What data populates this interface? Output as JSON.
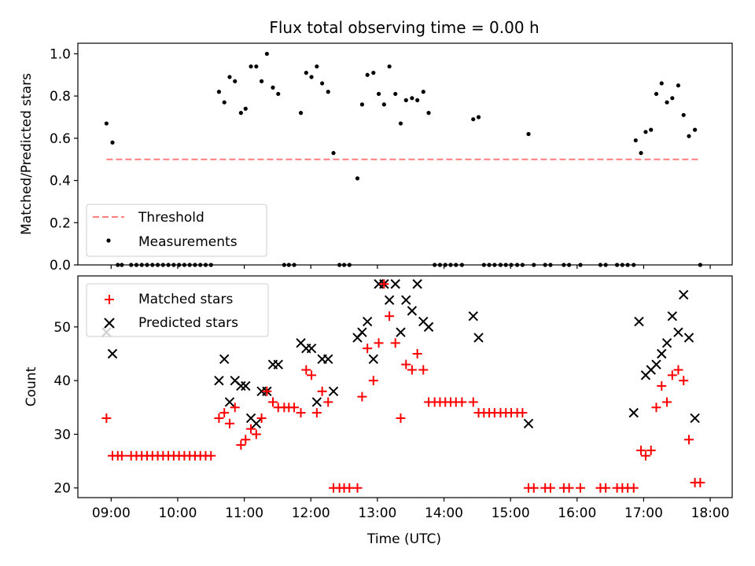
{
  "colors": {
    "threshold": "#ff7f7f",
    "measurements": "#000000",
    "matched": "#ff0000",
    "predicted": "#000000"
  },
  "chart_data": [
    {
      "type": "scatter",
      "title": "Flux total observing time = 0.00 h",
      "xlabel": "",
      "ylabel": "Matched/Predicted stars",
      "ylim": [
        0,
        1.05
      ],
      "yticks": [
        "0.0",
        "0.2",
        "0.4",
        "0.6",
        "0.8",
        "1.0"
      ],
      "xticks": [
        9,
        10,
        11,
        12,
        13,
        14,
        15,
        16,
        17,
        18
      ],
      "xlim": [
        8.5,
        18.33
      ],
      "legend": {
        "placement": "lower-left"
      },
      "threshold": {
        "name": "Threshold",
        "y": 0.5,
        "x_start": 8.93,
        "x_end": 17.83
      },
      "series": [
        {
          "name": "Measurements",
          "points": [
            [
              8.93,
              0.67
            ],
            [
              9.02,
              0.58
            ],
            [
              9.1,
              0
            ],
            [
              9.16,
              0
            ],
            [
              9.3,
              0
            ],
            [
              9.38,
              0
            ],
            [
              9.46,
              0
            ],
            [
              9.54,
              0
            ],
            [
              9.62,
              0
            ],
            [
              9.7,
              0
            ],
            [
              9.78,
              0
            ],
            [
              9.86,
              0
            ],
            [
              9.94,
              0
            ],
            [
              10.02,
              0
            ],
            [
              10.1,
              0
            ],
            [
              10.18,
              0
            ],
            [
              10.26,
              0
            ],
            [
              10.34,
              0
            ],
            [
              10.42,
              0
            ],
            [
              10.5,
              0
            ],
            [
              10.62,
              0.82
            ],
            [
              10.7,
              0.77
            ],
            [
              10.78,
              0.89
            ],
            [
              10.86,
              0.87
            ],
            [
              10.95,
              0.72
            ],
            [
              11.02,
              0.74
            ],
            [
              11.1,
              0.94
            ],
            [
              11.18,
              0.94
            ],
            [
              11.26,
              0.87
            ],
            [
              11.34,
              1.0
            ],
            [
              11.43,
              0.84
            ],
            [
              11.51,
              0.81
            ],
            [
              11.6,
              0
            ],
            [
              11.67,
              0
            ],
            [
              11.75,
              0
            ],
            [
              11.85,
              0.72
            ],
            [
              11.93,
              0.91
            ],
            [
              12.01,
              0.89
            ],
            [
              12.09,
              0.94
            ],
            [
              12.17,
              0.86
            ],
            [
              12.26,
              0.82
            ],
            [
              12.34,
              0.53
            ],
            [
              12.43,
              0
            ],
            [
              12.5,
              0
            ],
            [
              12.58,
              0
            ],
            [
              12.7,
              0.41
            ],
            [
              12.77,
              0.76
            ],
            [
              12.85,
              0.9
            ],
            [
              12.94,
              0.91
            ],
            [
              13.02,
              0.81
            ],
            [
              13.1,
              0.76
            ],
            [
              13.18,
              0.94
            ],
            [
              13.27,
              0.81
            ],
            [
              13.35,
              0.67
            ],
            [
              13.43,
              0.78
            ],
            [
              13.52,
              0.79
            ],
            [
              13.6,
              0.78
            ],
            [
              13.69,
              0.82
            ],
            [
              13.77,
              0.72
            ],
            [
              13.86,
              0
            ],
            [
              13.94,
              0
            ],
            [
              14.02,
              0
            ],
            [
              14.1,
              0
            ],
            [
              14.18,
              0
            ],
            [
              14.27,
              0
            ],
            [
              14.44,
              0.69
            ],
            [
              14.52,
              0.7
            ],
            [
              14.6,
              0
            ],
            [
              14.68,
              0
            ],
            [
              14.76,
              0
            ],
            [
              14.85,
              0
            ],
            [
              14.93,
              0
            ],
            [
              15.01,
              0
            ],
            [
              15.1,
              0
            ],
            [
              15.18,
              0
            ],
            [
              15.27,
              0.62
            ],
            [
              15.35,
              0
            ],
            [
              15.52,
              0
            ],
            [
              15.6,
              0
            ],
            [
              15.8,
              0
            ],
            [
              15.88,
              0
            ],
            [
              16.05,
              0
            ],
            [
              16.35,
              0
            ],
            [
              16.43,
              0
            ],
            [
              16.6,
              0
            ],
            [
              16.68,
              0
            ],
            [
              16.76,
              0
            ],
            [
              16.85,
              0
            ],
            [
              16.88,
              0.59
            ],
            [
              16.96,
              0.53
            ],
            [
              17.03,
              0.63
            ],
            [
              17.11,
              0.64
            ],
            [
              17.19,
              0.81
            ],
            [
              17.27,
              0.86
            ],
            [
              17.35,
              0.77
            ],
            [
              17.43,
              0.79
            ],
            [
              17.52,
              0.85
            ],
            [
              17.6,
              0.71
            ],
            [
              17.68,
              0.61
            ],
            [
              17.77,
              0.64
            ],
            [
              17.85,
              0
            ]
          ]
        }
      ]
    },
    {
      "type": "scatter",
      "title": "",
      "xlabel": "Time (UTC)",
      "ylabel": "Count",
      "ylim": [
        18.2,
        59.5
      ],
      "yticks": [
        20,
        30,
        40,
        50
      ],
      "xticks": [
        9,
        10,
        11,
        12,
        13,
        14,
        15,
        16,
        17,
        18
      ],
      "xtick_labels": [
        "09:00",
        "10:00",
        "11:00",
        "12:00",
        "13:00",
        "14:00",
        "15:00",
        "16:00",
        "17:00",
        "18:00"
      ],
      "xlim": [
        8.5,
        18.33
      ],
      "legend": {
        "placement": "top-left"
      },
      "series": [
        {
          "name": "Matched stars",
          "marker": "plus",
          "points": [
            [
              8.93,
              33
            ],
            [
              9.02,
              26
            ],
            [
              9.1,
              26
            ],
            [
              9.16,
              26
            ],
            [
              9.3,
              26
            ],
            [
              9.38,
              26
            ],
            [
              9.46,
              26
            ],
            [
              9.54,
              26
            ],
            [
              9.62,
              26
            ],
            [
              9.7,
              26
            ],
            [
              9.78,
              26
            ],
            [
              9.86,
              26
            ],
            [
              9.94,
              26
            ],
            [
              10.02,
              26
            ],
            [
              10.1,
              26
            ],
            [
              10.18,
              26
            ],
            [
              10.26,
              26
            ],
            [
              10.34,
              26
            ],
            [
              10.42,
              26
            ],
            [
              10.5,
              26
            ],
            [
              10.62,
              33
            ],
            [
              10.7,
              34
            ],
            [
              10.78,
              32
            ],
            [
              10.86,
              35
            ],
            [
              10.95,
              28
            ],
            [
              11.02,
              29
            ],
            [
              11.1,
              31
            ],
            [
              11.18,
              30
            ],
            [
              11.26,
              33
            ],
            [
              11.34,
              38
            ],
            [
              11.43,
              36
            ],
            [
              11.51,
              35
            ],
            [
              11.6,
              35
            ],
            [
              11.67,
              35
            ],
            [
              11.75,
              35
            ],
            [
              11.85,
              34
            ],
            [
              11.93,
              42
            ],
            [
              12.01,
              41
            ],
            [
              12.09,
              34
            ],
            [
              12.17,
              38
            ],
            [
              12.26,
              36
            ],
            [
              12.34,
              20
            ],
            [
              12.43,
              20
            ],
            [
              12.5,
              20
            ],
            [
              12.58,
              20
            ],
            [
              12.7,
              20
            ],
            [
              12.77,
              37
            ],
            [
              12.85,
              46
            ],
            [
              12.94,
              40
            ],
            [
              13.02,
              47
            ],
            [
              13.1,
              58
            ],
            [
              13.18,
              52
            ],
            [
              13.27,
              47
            ],
            [
              13.35,
              33
            ],
            [
              13.43,
              43
            ],
            [
              13.52,
              42
            ],
            [
              13.6,
              45
            ],
            [
              13.69,
              42
            ],
            [
              13.77,
              36
            ],
            [
              13.86,
              36
            ],
            [
              13.94,
              36
            ],
            [
              14.02,
              36
            ],
            [
              14.1,
              36
            ],
            [
              14.18,
              36
            ],
            [
              14.27,
              36
            ],
            [
              14.44,
              36
            ],
            [
              14.52,
              34
            ],
            [
              14.6,
              34
            ],
            [
              14.68,
              34
            ],
            [
              14.76,
              34
            ],
            [
              14.85,
              34
            ],
            [
              14.93,
              34
            ],
            [
              15.01,
              34
            ],
            [
              15.1,
              34
            ],
            [
              15.18,
              34
            ],
            [
              15.27,
              20
            ],
            [
              15.35,
              20
            ],
            [
              15.52,
              20
            ],
            [
              15.6,
              20
            ],
            [
              15.8,
              20
            ],
            [
              15.88,
              20
            ],
            [
              16.05,
              20
            ],
            [
              16.35,
              20
            ],
            [
              16.43,
              20
            ],
            [
              16.6,
              20
            ],
            [
              16.68,
              20
            ],
            [
              16.76,
              20
            ],
            [
              16.85,
              20
            ],
            [
              16.96,
              27
            ],
            [
              17.03,
              26
            ],
            [
              17.11,
              27
            ],
            [
              17.19,
              35
            ],
            [
              17.27,
              39
            ],
            [
              17.35,
              36
            ],
            [
              17.43,
              41
            ],
            [
              17.52,
              42
            ],
            [
              17.6,
              40
            ],
            [
              17.68,
              29
            ],
            [
              17.77,
              21
            ],
            [
              17.85,
              21
            ]
          ]
        },
        {
          "name": "Predicted stars",
          "marker": "x",
          "points": [
            [
              8.93,
              49
            ],
            [
              9.02,
              45
            ],
            [
              10.62,
              40
            ],
            [
              10.7,
              44
            ],
            [
              10.78,
              36
            ],
            [
              10.86,
              40
            ],
            [
              10.95,
              39
            ],
            [
              11.02,
              39
            ],
            [
              11.1,
              33
            ],
            [
              11.18,
              32
            ],
            [
              11.26,
              38
            ],
            [
              11.34,
              38
            ],
            [
              11.43,
              43
            ],
            [
              11.51,
              43
            ],
            [
              11.85,
              47
            ],
            [
              11.93,
              46
            ],
            [
              12.01,
              46
            ],
            [
              12.09,
              36
            ],
            [
              12.17,
              44
            ],
            [
              12.26,
              44
            ],
            [
              12.34,
              38
            ],
            [
              12.7,
              48
            ],
            [
              12.77,
              49
            ],
            [
              12.85,
              51
            ],
            [
              12.94,
              44
            ],
            [
              13.02,
              58
            ],
            [
              13.1,
              58
            ],
            [
              13.18,
              55
            ],
            [
              13.27,
              58
            ],
            [
              13.35,
              49
            ],
            [
              13.43,
              55
            ],
            [
              13.52,
              53
            ],
            [
              13.6,
              58
            ],
            [
              13.69,
              51
            ],
            [
              13.77,
              50
            ],
            [
              14.44,
              52
            ],
            [
              14.52,
              48
            ],
            [
              15.27,
              32
            ],
            [
              16.85,
              34
            ],
            [
              16.93,
              51
            ],
            [
              17.03,
              41
            ],
            [
              17.11,
              42
            ],
            [
              17.19,
              43
            ],
            [
              17.27,
              45
            ],
            [
              17.35,
              47
            ],
            [
              17.43,
              52
            ],
            [
              17.52,
              49
            ],
            [
              17.6,
              56
            ],
            [
              17.68,
              48
            ],
            [
              17.77,
              33
            ]
          ]
        }
      ]
    }
  ]
}
